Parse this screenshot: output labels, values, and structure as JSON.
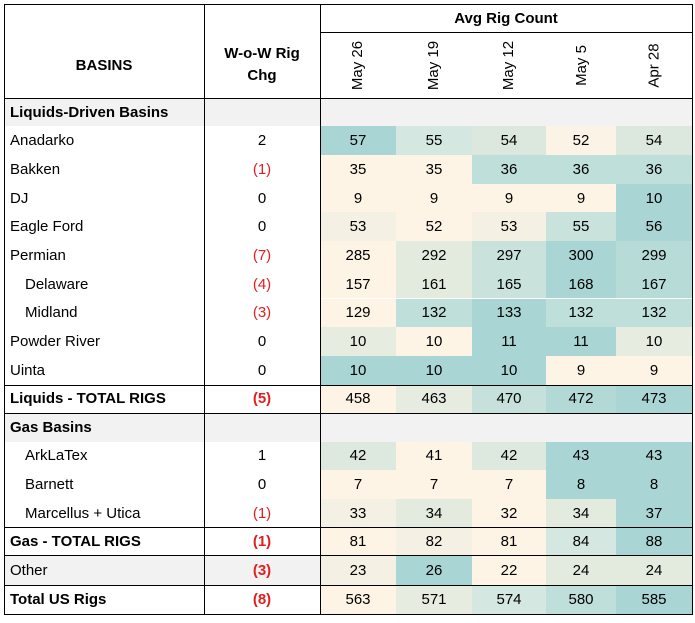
{
  "header": {
    "basins_label": "BASINS",
    "wow_label_1": "W-o-W Rig",
    "wow_label_2": "Chg",
    "avg_label": "Avg Rig Count",
    "weeks": [
      "May 26",
      "May 19",
      "May 12",
      "May 5",
      "Apr 28"
    ]
  },
  "rows": [
    {
      "label": "Liquids-Driven Basins",
      "type": "section"
    },
    {
      "label": "Anadarko",
      "type": "data",
      "wow": "2",
      "neg": false,
      "values": [
        57,
        55,
        54,
        52,
        54
      ],
      "colors": [
        "#a9d6d4",
        "#d4e8e1",
        "#dce8dd",
        "#faf3e6",
        "#dce8dd"
      ]
    },
    {
      "label": "Bakken",
      "type": "data",
      "wow": "(1)",
      "neg": true,
      "values": [
        35,
        35,
        36,
        36,
        36
      ],
      "colors": [
        "#fdf4e6",
        "#fdf4e6",
        "#bfdfdb",
        "#bfdfdb",
        "#bfdfdb"
      ]
    },
    {
      "label": "DJ",
      "type": "data",
      "wow": "0",
      "neg": false,
      "values": [
        9,
        9,
        9,
        9,
        10
      ],
      "colors": [
        "#fdf4e6",
        "#fdf4e6",
        "#fdf4e6",
        "#fdf4e6",
        "#a9d6d4"
      ]
    },
    {
      "label": "Eagle Ford",
      "type": "data",
      "wow": "0",
      "neg": false,
      "values": [
        53,
        52,
        53,
        55,
        56
      ],
      "colors": [
        "#f4f1e4",
        "#fdf4e6",
        "#f4f1e4",
        "#c9e2dc",
        "#a9d6d4"
      ]
    },
    {
      "label": "Permian",
      "type": "data",
      "wow": "(7)",
      "neg": true,
      "values": [
        285,
        292,
        297,
        300,
        299
      ],
      "colors": [
        "#fdf4e6",
        "#e3ebdf",
        "#c9e2dc",
        "#a9d6d4",
        "#b7dbd7"
      ]
    },
    {
      "label": "Delaware",
      "type": "data",
      "wow": "(4)",
      "neg": true,
      "indent": true,
      "values": [
        157,
        161,
        165,
        168,
        167
      ],
      "colors": [
        "#fdf4e6",
        "#e3ebdf",
        "#c9e2dc",
        "#a9d6d4",
        "#b7dbd7"
      ]
    },
    {
      "label": "Midland",
      "type": "data",
      "wow": "(3)",
      "neg": true,
      "indent": true,
      "values": [
        129,
        132,
        133,
        132,
        132
      ],
      "colors": [
        "#fdf4e6",
        "#bfdfdb",
        "#a9d6d4",
        "#bfdfdb",
        "#bfdfdb"
      ]
    },
    {
      "label": "Powder River",
      "type": "data",
      "wow": "0",
      "neg": false,
      "values": [
        10,
        10,
        11,
        11,
        10
      ],
      "colors": [
        "#e6ece0",
        "#fdf4e6",
        "#a9d6d4",
        "#a9d6d4",
        "#e6ece0"
      ]
    },
    {
      "label": "Uinta",
      "type": "data",
      "wow": "0",
      "neg": false,
      "values": [
        10,
        10,
        10,
        9,
        9
      ],
      "colors": [
        "#a9d6d4",
        "#a9d6d4",
        "#a9d6d4",
        "#fdf4e6",
        "#fdf4e6"
      ]
    },
    {
      "label": "Liquids - TOTAL RIGS",
      "type": "total",
      "wow": "(5)",
      "neg": true,
      "values": [
        458,
        463,
        470,
        472,
        473
      ],
      "colors": [
        "#fdf4e6",
        "#e6ece0",
        "#c6e1db",
        "#b3d9d6",
        "#a9d6d4"
      ]
    },
    {
      "label": "Gas Basins",
      "type": "section"
    },
    {
      "label": "ArkLaTex",
      "type": "data",
      "wow": "1",
      "neg": false,
      "indent": true,
      "values": [
        42,
        41,
        42,
        43,
        43
      ],
      "colors": [
        "#dde9de",
        "#fdf4e6",
        "#dde9de",
        "#a9d6d4",
        "#a9d6d4"
      ]
    },
    {
      "label": "Barnett",
      "type": "data",
      "wow": "0",
      "neg": false,
      "indent": true,
      "values": [
        7,
        7,
        7,
        8,
        8
      ],
      "colors": [
        "#fdf4e6",
        "#fdf4e6",
        "#fdf4e6",
        "#a9d6d4",
        "#a9d6d4"
      ]
    },
    {
      "label": "Marcellus + Utica",
      "type": "data",
      "wow": "(1)",
      "neg": true,
      "indent": true,
      "values": [
        33,
        34,
        32,
        34,
        37
      ],
      "colors": [
        "#f4f1e4",
        "#e3ebdf",
        "#fdf4e6",
        "#e3ebdf",
        "#a9d6d4"
      ]
    },
    {
      "label": "Gas - TOTAL RIGS",
      "type": "total",
      "wow": "(1)",
      "neg": true,
      "values": [
        81,
        82,
        81,
        84,
        88
      ],
      "colors": [
        "#fdf4e6",
        "#f4f1e4",
        "#fdf4e6",
        "#d4e8e1",
        "#a9d6d4"
      ]
    },
    {
      "label": "Other",
      "type": "other",
      "wow": "(3)",
      "neg": true,
      "values": [
        23,
        26,
        22,
        24,
        24
      ],
      "colors": [
        "#f4f1e4",
        "#a9d6d4",
        "#fdf4e6",
        "#e3ebdf",
        "#e3ebdf"
      ]
    },
    {
      "label": "Total US Rigs",
      "type": "total",
      "wow": "(8)",
      "neg": true,
      "values": [
        563,
        571,
        574,
        580,
        585
      ],
      "colors": [
        "#fdf4e6",
        "#e6ece0",
        "#d4e8e1",
        "#bfdfdb",
        "#a9d6d4"
      ]
    }
  ],
  "colors": {
    "section_bg": "#f2f2f2",
    "other_bg": "#f2f2f2",
    "negative_text": "#e02020"
  }
}
